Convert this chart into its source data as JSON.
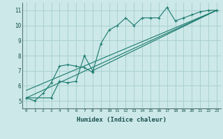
{
  "xlabel": "Humidex (Indice chaleur)",
  "background_color": "#cce8e8",
  "grid_color": "#aad0d0",
  "line_color": "#1a7a6e",
  "xlim": [
    -0.5,
    23.5
  ],
  "ylim": [
    4.5,
    11.5
  ],
  "xticks": [
    0,
    1,
    2,
    3,
    4,
    5,
    6,
    7,
    8,
    9,
    10,
    11,
    12,
    13,
    14,
    15,
    16,
    17,
    18,
    19,
    20,
    21,
    22,
    23
  ],
  "yticks": [
    5,
    6,
    7,
    8,
    9,
    10,
    11
  ],
  "line1_x": [
    0,
    1,
    2,
    3,
    4,
    5,
    6,
    7,
    8,
    9,
    10,
    11,
    12,
    13,
    14,
    15,
    16,
    17,
    18,
    19,
    20,
    21,
    22,
    23
  ],
  "line1_y": [
    5.2,
    5.0,
    5.5,
    6.2,
    7.3,
    7.4,
    7.3,
    7.2,
    6.9,
    8.8,
    9.7,
    10.0,
    10.5,
    10.0,
    10.5,
    10.5,
    10.5,
    11.2,
    10.3,
    10.5,
    10.7,
    10.9,
    11.0,
    11.0
  ],
  "line2_x": [
    0,
    3,
    4,
    5,
    6,
    7,
    8,
    23
  ],
  "line2_y": [
    5.2,
    5.2,
    6.3,
    6.2,
    6.3,
    8.0,
    7.0,
    11.0
  ],
  "line3_x": [
    0,
    23
  ],
  "line3_y": [
    5.2,
    11.0
  ],
  "line4_x": [
    0,
    23
  ],
  "line4_y": [
    5.7,
    11.0
  ]
}
